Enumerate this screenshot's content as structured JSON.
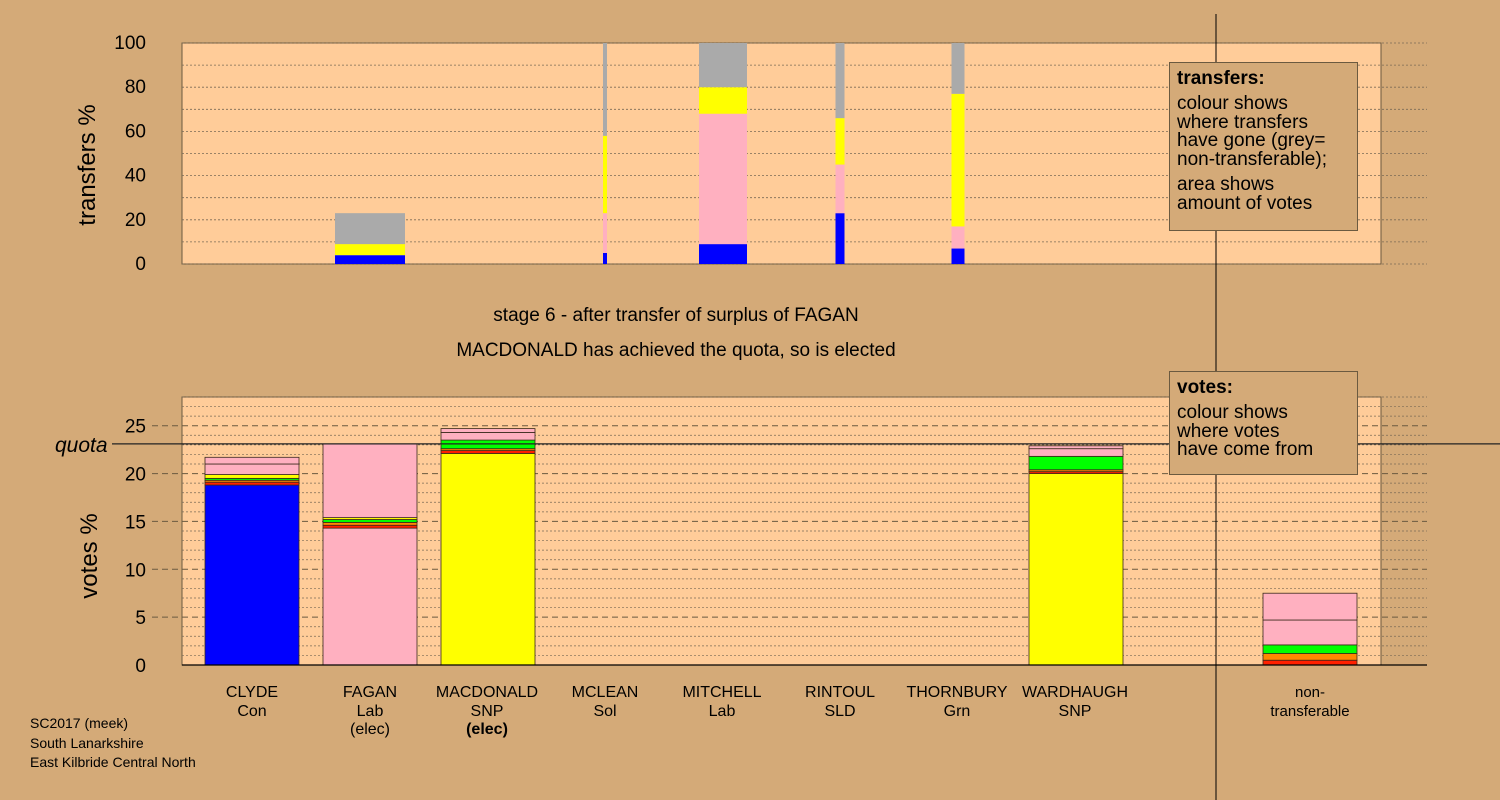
{
  "colors": {
    "background": "#d4aa78",
    "plot_bg": "#ffcc99",
    "Con": "#0000ff",
    "Lab": "#ffb0c0",
    "SNP": "#ffff00",
    "Sol": "#ff2000",
    "SLD": "#ff8800",
    "Grn": "#00ff00",
    "nontransferable": "#aaaaaa"
  },
  "titles": {
    "stage": "stage 6 - after transfer of surplus of FAGAN",
    "status": "MACDONALD has achieved the quota, so is elected"
  },
  "legend_transfers": {
    "heading": "transfers:",
    "lines1": [
      "colour shows",
      "where transfers",
      "have gone (grey=",
      "non-transferable);"
    ],
    "lines2": [
      "area shows",
      "amount of votes"
    ]
  },
  "legend_votes": {
    "heading": "votes:",
    "lines": [
      "colour shows",
      "where votes",
      "have come from"
    ]
  },
  "quota_label": "quota",
  "footer": [
    "SC2017 (meek)",
    "South Lanarkshire",
    "East Kilbride Central North"
  ],
  "candidates": [
    {
      "name": "CLYDE",
      "party": "Con",
      "note": ""
    },
    {
      "name": "FAGAN",
      "party": "Lab",
      "note": "(elec)"
    },
    {
      "name": "MACDONALD",
      "party": "SNP",
      "note": "(elec)"
    },
    {
      "name": "MCLEAN",
      "party": "Sol",
      "note": ""
    },
    {
      "name": "MITCHELL",
      "party": "Lab",
      "note": ""
    },
    {
      "name": "RINTOUL",
      "party": "SLD",
      "note": ""
    },
    {
      "name": "THORNBURY",
      "party": "Grn",
      "note": ""
    },
    {
      "name": "WARDHAUGH",
      "party": "SNP",
      "note": ""
    },
    {
      "name": "non-",
      "party": "transferable",
      "note": ""
    }
  ],
  "chart_data": [
    {
      "type": "bar",
      "ylabel": "transfers %",
      "ylim": [
        0,
        100
      ],
      "yticks": [
        0,
        20,
        40,
        60,
        80,
        100
      ],
      "grid": true,
      "bars": [
        {
          "candidate": "FAGAN",
          "segments": [
            {
              "party": "Con",
              "value": 4
            },
            {
              "party": "SNP",
              "value": 5
            },
            {
              "party": "nontransferable",
              "value": 14
            }
          ]
        },
        {
          "candidate": "MCLEAN",
          "segments": [
            {
              "party": "Con",
              "value": 5
            },
            {
              "party": "Lab",
              "value": 18
            },
            {
              "party": "SNP",
              "value": 35
            },
            {
              "party": "nontransferable",
              "value": 42
            }
          ]
        },
        {
          "candidate": "MITCHELL",
          "segments": [
            {
              "party": "Con",
              "value": 9
            },
            {
              "party": "Lab",
              "value": 59
            },
            {
              "party": "SNP",
              "value": 12
            },
            {
              "party": "nontransferable",
              "value": 20
            }
          ]
        },
        {
          "candidate": "RINTOUL",
          "segments": [
            {
              "party": "Con",
              "value": 23
            },
            {
              "party": "Lab",
              "value": 22
            },
            {
              "party": "SNP",
              "value": 21
            },
            {
              "party": "nontransferable",
              "value": 34
            }
          ]
        },
        {
          "candidate": "THORNBURY",
          "segments": [
            {
              "party": "Con",
              "value": 7
            },
            {
              "party": "Lab",
              "value": 10
            },
            {
              "party": "SNP",
              "value": 60
            },
            {
              "party": "nontransferable",
              "value": 23
            }
          ]
        }
      ]
    },
    {
      "type": "bar",
      "ylabel": "votes %",
      "ylim": [
        0,
        28
      ],
      "yticks": [
        0,
        5,
        10,
        15,
        20,
        25
      ],
      "quota": 23.1,
      "grid": true,
      "bars": [
        {
          "candidate": "CLYDE",
          "segments": [
            {
              "party": "Con",
              "value": 18.8
            },
            {
              "party": "Sol",
              "value": 0.3
            },
            {
              "party": "SLD",
              "value": 0.2
            },
            {
              "party": "Grn",
              "value": 0.2
            },
            {
              "party": "SNP",
              "value": 0.4
            },
            {
              "party": "Lab",
              "value": 1.1
            },
            {
              "party": "Lab",
              "value": 0.7
            }
          ]
        },
        {
          "candidate": "FAGAN",
          "segments": [
            {
              "party": "Lab",
              "value": 14.3
            },
            {
              "party": "Sol",
              "value": 0.3
            },
            {
              "party": "SLD",
              "value": 0.3
            },
            {
              "party": "Grn",
              "value": 0.3
            },
            {
              "party": "SNP",
              "value": 0.2
            },
            {
              "party": "Lab",
              "value": 7.7
            }
          ]
        },
        {
          "candidate": "MACDONALD",
          "segments": [
            {
              "party": "SNP",
              "value": 22.1
            },
            {
              "party": "Sol",
              "value": 0.3
            },
            {
              "party": "SLD",
              "value": 0.2
            },
            {
              "party": "Grn",
              "value": 0.9
            },
            {
              "party": "Lab",
              "value": 0.8
            },
            {
              "party": "Lab",
              "value": 0.4
            }
          ]
        },
        {
          "candidate": "WARDHAUGH",
          "segments": [
            {
              "party": "SNP",
              "value": 20.0
            },
            {
              "party": "Sol",
              "value": 0.2
            },
            {
              "party": "SLD",
              "value": 0.2
            },
            {
              "party": "Grn",
              "value": 1.4
            },
            {
              "party": "Lab",
              "value": 0.8
            },
            {
              "party": "Lab",
              "value": 0.3
            }
          ]
        },
        {
          "candidate": "non-transferable",
          "segments": [
            {
              "party": "Sol",
              "value": 0.5
            },
            {
              "party": "SLD",
              "value": 0.7
            },
            {
              "party": "Grn",
              "value": 0.9
            },
            {
              "party": "Lab",
              "value": 2.6
            },
            {
              "party": "Lab",
              "value": 2.8
            }
          ]
        }
      ]
    }
  ]
}
